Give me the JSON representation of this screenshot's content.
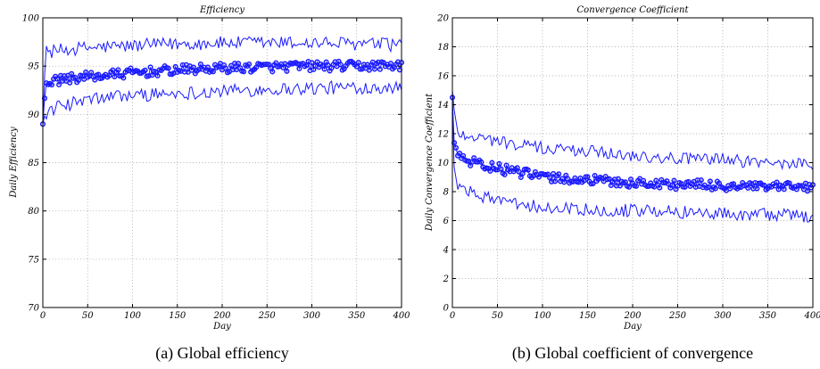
{
  "captions": [
    "(a) Global efficiency",
    "(b) Global coefficient of convergence"
  ],
  "colors": {
    "series": "#1a1aff",
    "axis": "#000000",
    "grid": "#9a9a9a"
  },
  "chart_data": [
    {
      "type": "line",
      "title": "Efficiency",
      "xlabel": "Day",
      "ylabel": "Daily Efficiency",
      "xlim": [
        0,
        400
      ],
      "ylim": [
        70,
        100
      ],
      "xticks": [
        0,
        50,
        100,
        150,
        200,
        250,
        300,
        350,
        400
      ],
      "yticks": [
        70,
        75,
        80,
        85,
        90,
        95,
        100
      ],
      "grid": true,
      "trend": {
        "x": [
          0,
          3,
          10,
          25,
          50,
          75,
          100,
          150,
          200,
          250,
          300,
          350,
          400
        ],
        "mean": [
          89,
          93.2,
          93.4,
          93.7,
          93.9,
          94.1,
          94.3,
          94.6,
          94.8,
          94.9,
          95.0,
          95.0,
          95.1
        ],
        "upper": [
          89,
          96.5,
          96.5,
          96.7,
          96.9,
          97.0,
          97.1,
          97.3,
          97.4,
          97.4,
          97.4,
          97.3,
          97.2
        ],
        "lower": [
          89,
          90.0,
          90.5,
          91.0,
          91.5,
          91.8,
          92.0,
          92.2,
          92.4,
          92.6,
          92.7,
          92.8,
          92.9
        ]
      },
      "noise": {
        "mean": 0.5,
        "band": 0.7
      }
    },
    {
      "type": "line",
      "title": "Convergence Coefficient",
      "xlabel": "Day",
      "ylabel": "Daily Convergence Coefficient",
      "xlim": [
        0,
        400
      ],
      "ylim": [
        0,
        20
      ],
      "xticks": [
        0,
        50,
        100,
        150,
        200,
        250,
        300,
        350,
        400
      ],
      "yticks": [
        0,
        2,
        4,
        6,
        8,
        10,
        12,
        14,
        16,
        18,
        20
      ],
      "grid": true,
      "trend": {
        "x": [
          0,
          2,
          5,
          10,
          25,
          50,
          75,
          100,
          150,
          200,
          250,
          300,
          350,
          400
        ],
        "mean": [
          14.5,
          11.5,
          10.5,
          10.3,
          10.0,
          9.6,
          9.3,
          9.0,
          8.8,
          8.6,
          8.5,
          8.4,
          8.3,
          8.3
        ],
        "upper": [
          15,
          13.5,
          12.2,
          12.0,
          11.8,
          11.5,
          11.2,
          11.0,
          10.8,
          10.5,
          10.3,
          10.2,
          10.0,
          9.9
        ],
        "lower": [
          14,
          9.5,
          8.4,
          8.2,
          7.8,
          7.4,
          7.1,
          6.9,
          6.8,
          6.7,
          6.6,
          6.5,
          6.4,
          6.3
        ]
      },
      "noise": {
        "mean": 0.35,
        "band": 0.45
      }
    }
  ]
}
